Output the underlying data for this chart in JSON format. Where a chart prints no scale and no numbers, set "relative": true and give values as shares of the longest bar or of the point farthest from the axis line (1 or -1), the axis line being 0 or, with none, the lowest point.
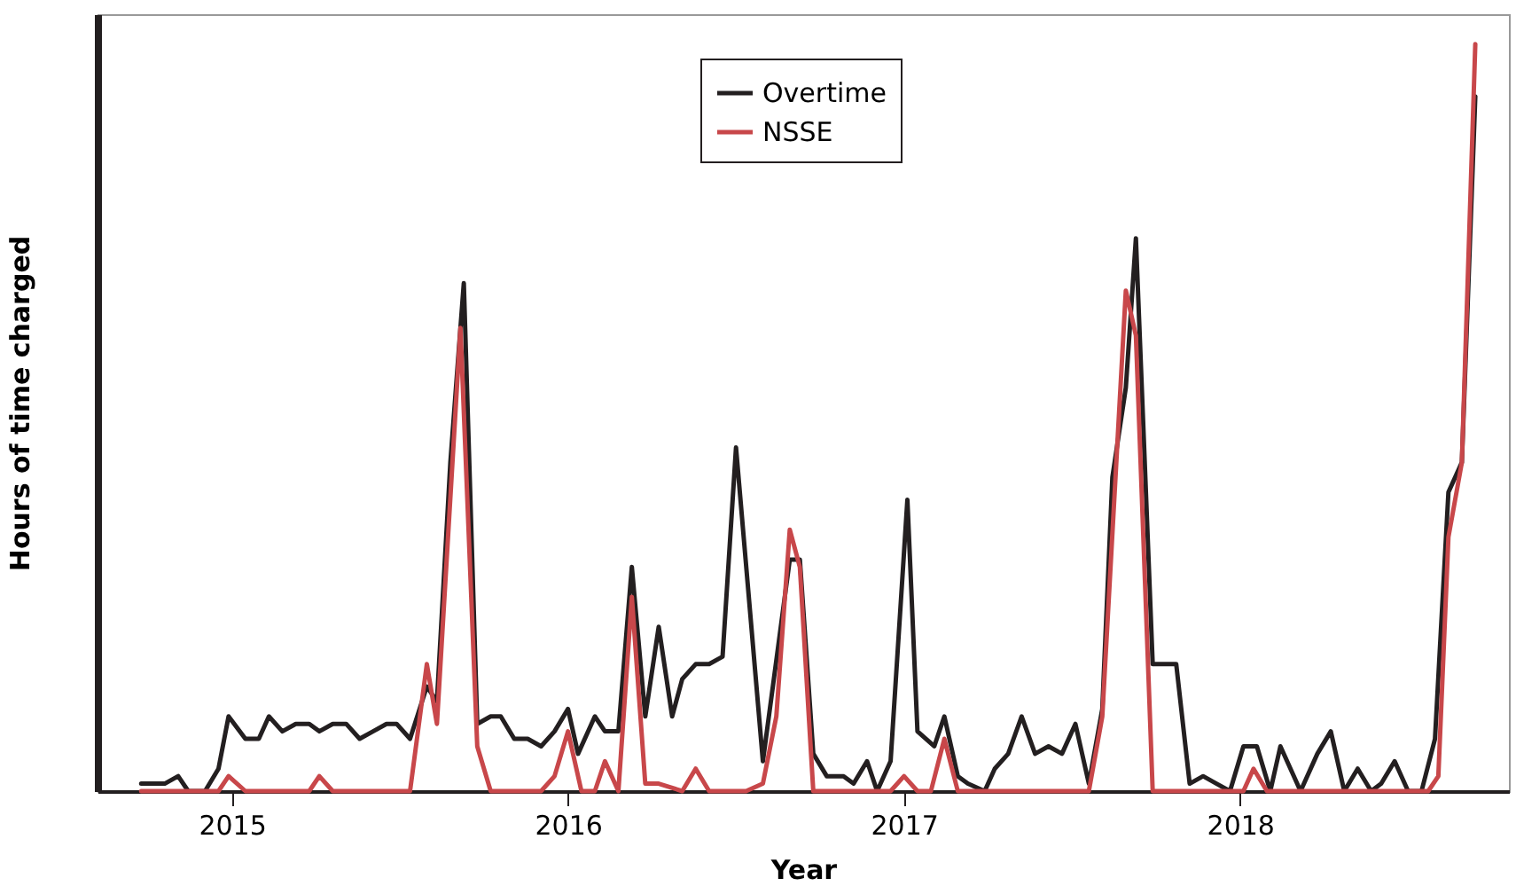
{
  "chart_data": {
    "type": "line",
    "xlabel": "Year",
    "ylabel": "Hours of time charged",
    "relative": true,
    "xlim": [
      2014.6,
      2018.8
    ],
    "xticks": [
      2015,
      2016,
      2017,
      2018
    ],
    "legend": "top",
    "grid": false,
    "marker": "none",
    "line_style": "solid",
    "series": [
      {
        "name": "Overtime",
        "color": "#231f20",
        "x": [
          2014.73,
          2014.8,
          2014.84,
          2014.87,
          2014.92,
          2014.96,
          2014.99,
          2015.04,
          2015.08,
          2015.11,
          2015.15,
          2015.19,
          2015.23,
          2015.26,
          2015.3,
          2015.34,
          2015.38,
          2015.42,
          2015.46,
          2015.49,
          2015.53,
          2015.58,
          2015.61,
          2015.65,
          2015.69,
          2015.73,
          2015.77,
          2015.8,
          2015.84,
          2015.88,
          2015.92,
          2015.96,
          2016.0,
          2016.03,
          2016.08,
          2016.11,
          2016.15,
          2016.19,
          2016.23,
          2016.27,
          2016.31,
          2016.34,
          2016.38,
          2016.42,
          2016.46,
          2016.5,
          2016.58,
          2016.66,
          2016.69,
          2016.73,
          2016.77,
          2016.82,
          2016.85,
          2016.89,
          2016.92,
          2016.96,
          2017.01,
          2017.04,
          2017.09,
          2017.12,
          2017.16,
          2017.19,
          2017.24,
          2017.27,
          2017.31,
          2017.35,
          2017.39,
          2017.43,
          2017.47,
          2017.51,
          2017.55,
          2017.59,
          2017.62,
          2017.66,
          2017.69,
          2017.74,
          2017.77,
          2017.81,
          2017.85,
          2017.89,
          2017.93,
          2017.97,
          2018.01,
          2018.05,
          2018.09,
          2018.12,
          2018.18,
          2018.23,
          2018.27,
          2018.31,
          2018.35,
          2018.39,
          2018.42,
          2018.46,
          2018.5,
          2018.54,
          2018.58,
          2018.62,
          2018.66,
          2018.7
        ],
        "values": [
          0.01,
          0.01,
          0.02,
          0.0,
          0.0,
          0.03,
          0.1,
          0.07,
          0.07,
          0.1,
          0.08,
          0.09,
          0.09,
          0.08,
          0.09,
          0.09,
          0.07,
          0.08,
          0.09,
          0.09,
          0.07,
          0.14,
          0.12,
          0.44,
          0.68,
          0.09,
          0.1,
          0.1,
          0.07,
          0.07,
          0.06,
          0.08,
          0.11,
          0.05,
          0.1,
          0.08,
          0.08,
          0.3,
          0.1,
          0.22,
          0.1,
          0.15,
          0.17,
          0.17,
          0.18,
          0.46,
          0.04,
          0.31,
          0.31,
          0.05,
          0.02,
          0.02,
          0.01,
          0.04,
          0.0,
          0.04,
          0.39,
          0.08,
          0.06,
          0.1,
          0.02,
          0.01,
          0.0,
          0.03,
          0.05,
          0.1,
          0.05,
          0.06,
          0.05,
          0.09,
          0.01,
          0.11,
          0.42,
          0.54,
          0.74,
          0.17,
          0.17,
          0.17,
          0.01,
          0.02,
          0.01,
          0.0,
          0.06,
          0.06,
          0.0,
          0.06,
          0.0,
          0.05,
          0.08,
          0.0,
          0.03,
          0.0,
          0.01,
          0.04,
          0.0,
          0.0,
          0.07,
          0.4,
          0.44,
          0.93
        ]
      },
      {
        "name": "NSSE",
        "color": "#c8474a",
        "x": [
          2014.73,
          2014.96,
          2014.99,
          2015.04,
          2015.23,
          2015.26,
          2015.3,
          2015.48,
          2015.53,
          2015.58,
          2015.61,
          2015.68,
          2015.73,
          2015.77,
          2015.92,
          2015.96,
          2016.0,
          2016.04,
          2016.08,
          2016.11,
          2016.15,
          2016.19,
          2016.23,
          2016.27,
          2016.34,
          2016.38,
          2016.42,
          2016.53,
          2016.58,
          2016.62,
          2016.66,
          2016.69,
          2016.73,
          2016.96,
          2017.0,
          2017.04,
          2017.08,
          2017.12,
          2017.16,
          2017.55,
          2017.59,
          2017.66,
          2017.69,
          2017.74,
          2018.01,
          2018.04,
          2018.08,
          2018.56,
          2018.59,
          2018.62,
          2018.66,
          2018.7
        ],
        "values": [
          0,
          0,
          0.02,
          0,
          0,
          0.02,
          0,
          0,
          0.0,
          0.17,
          0.09,
          0.62,
          0.06,
          0,
          0,
          0.02,
          0.08,
          0,
          0,
          0.04,
          0,
          0.26,
          0.01,
          0.01,
          0,
          0.03,
          0,
          0,
          0.01,
          0.1,
          0.35,
          0.3,
          0,
          0,
          0.02,
          0,
          0,
          0.07,
          0,
          0,
          0.1,
          0.67,
          0.61,
          0,
          0,
          0.03,
          0,
          0,
          0.02,
          0.34,
          0.44,
          1
        ]
      }
    ]
  }
}
